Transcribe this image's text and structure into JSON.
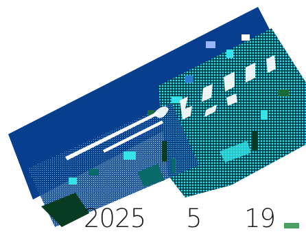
{
  "stamp": {
    "year": "2025",
    "month": "5",
    "day": "19"
  },
  "colors": {
    "deep_blue": "#073f8e",
    "cyan": "#35e3e8",
    "teal": "#0a6a6a",
    "dark_green": "#083c22",
    "white_flash": "#ffffff"
  }
}
